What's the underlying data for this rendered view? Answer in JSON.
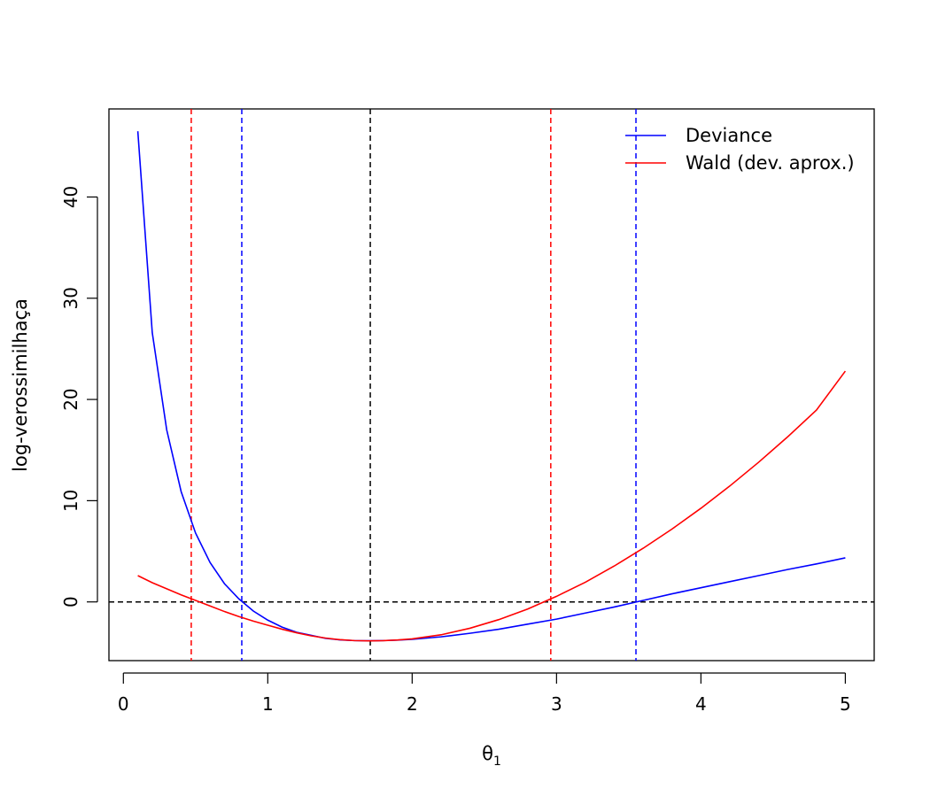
{
  "chart_data": {
    "type": "line",
    "title": "",
    "xlabel": "θ",
    "xlabel_subscript": "1",
    "ylabel": "log-verossimilhaça",
    "xlim": [
      -0.1,
      5.2
    ],
    "ylim": [
      -5.8,
      48.7
    ],
    "xticks": [
      0,
      1,
      2,
      3,
      4,
      5
    ],
    "yticks": [
      0,
      10,
      20,
      30,
      40
    ],
    "x": [
      0.1,
      0.2,
      0.3,
      0.4,
      0.5,
      0.6,
      0.7,
      0.8,
      0.9,
      1.0,
      1.1,
      1.2,
      1.3,
      1.4,
      1.5,
      1.6,
      1.7,
      1.8,
      1.9,
      2.0,
      2.2,
      2.4,
      2.6,
      2.8,
      3.0,
      3.2,
      3.4,
      3.6,
      3.8,
      4.0,
      4.2,
      4.4,
      4.6,
      4.8,
      5.0
    ],
    "series": [
      {
        "name": "Deviance",
        "color": "#0000ff",
        "values": [
          46.5,
          26.6,
          17.0,
          10.9,
          6.8,
          3.9,
          1.8,
          0.3,
          -0.9,
          -1.8,
          -2.5,
          -3.0,
          -3.3,
          -3.6,
          -3.75,
          -3.82,
          -3.84,
          -3.82,
          -3.77,
          -3.7,
          -3.45,
          -3.1,
          -2.7,
          -2.2,
          -1.7,
          -1.1,
          -0.5,
          0.15,
          0.8,
          1.4,
          2.0,
          2.6,
          3.2,
          3.75,
          4.35
        ]
      },
      {
        "name": "Wald (dev. aprox.)",
        "color": "#ff0000",
        "values": [
          2.6,
          1.9,
          1.3,
          0.7,
          0.15,
          -0.4,
          -0.95,
          -1.45,
          -1.9,
          -2.3,
          -2.7,
          -3.05,
          -3.35,
          -3.57,
          -3.73,
          -3.82,
          -3.85,
          -3.83,
          -3.76,
          -3.65,
          -3.25,
          -2.6,
          -1.75,
          -0.7,
          0.55,
          1.95,
          3.55,
          5.3,
          7.2,
          9.25,
          11.45,
          13.8,
          16.3,
          18.95,
          22.8
        ]
      }
    ],
    "reference_lines": [
      {
        "orientation": "horizontal",
        "value": 0,
        "color": "#000000",
        "style": "dashed"
      },
      {
        "orientation": "vertical",
        "value": 1.71,
        "color": "#000000",
        "style": "dashed"
      },
      {
        "orientation": "vertical",
        "value": 0.82,
        "color": "#0000ff",
        "style": "dashed"
      },
      {
        "orientation": "vertical",
        "value": 3.55,
        "color": "#0000ff",
        "style": "dashed"
      },
      {
        "orientation": "vertical",
        "value": 0.47,
        "color": "#ff0000",
        "style": "dashed"
      },
      {
        "orientation": "vertical",
        "value": 2.96,
        "color": "#ff0000",
        "style": "dashed"
      }
    ],
    "legend": {
      "position": "top-right",
      "entries": [
        "Deviance",
        "Wald (dev. aprox.)"
      ]
    },
    "grid": false
  }
}
